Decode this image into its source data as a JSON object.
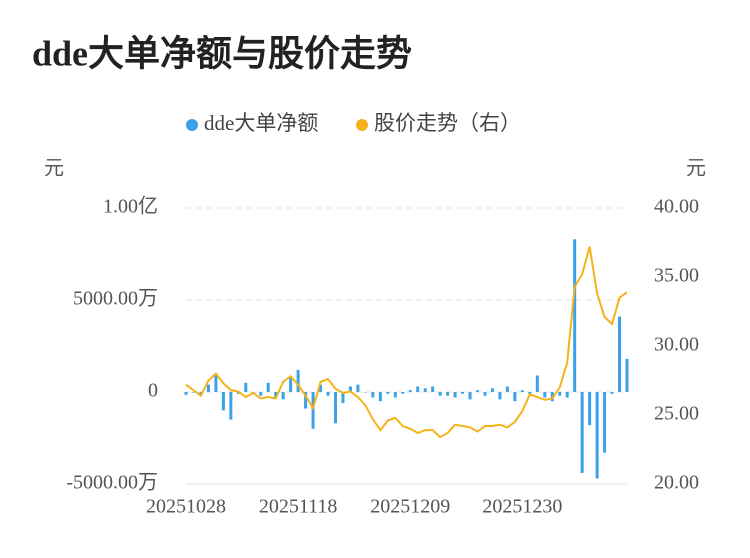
{
  "chart_data": {
    "type": "bar",
    "title": "dde大单净额与股价走势",
    "y_label": "元",
    "y2_label": "元",
    "categories": [
      "20251028",
      null,
      null,
      null,
      null,
      null,
      null,
      null,
      null,
      null,
      null,
      null,
      null,
      null,
      null,
      "20251118",
      null,
      null,
      null,
      null,
      null,
      null,
      null,
      null,
      null,
      null,
      null,
      null,
      null,
      null,
      "20251209",
      null,
      null,
      null,
      null,
      null,
      null,
      null,
      null,
      null,
      null,
      null,
      null,
      null,
      null,
      "20251230",
      null,
      null,
      null,
      null,
      null,
      null,
      null,
      null,
      null,
      null,
      null,
      null,
      null,
      null
    ],
    "series": [
      {
        "name": "dde大单净额",
        "type": "bar",
        "axis": "y",
        "color": "#3ba1e8",
        "values": [
          -1500000,
          0,
          -1000000,
          4000000,
          9000000,
          -10000000,
          -15000000,
          -1000000,
          5000000,
          0,
          -2000000,
          5000000,
          -3000000,
          -4000000,
          8000000,
          12000000,
          -9000000,
          -20000000,
          4000000,
          -2000000,
          -17000000,
          -6000000,
          3000000,
          4000000,
          0,
          -3000000,
          -5000000,
          -1000000,
          -3000000,
          -1000000,
          1000000,
          3000000,
          2000000,
          3000000,
          -2000000,
          -2000000,
          -3000000,
          -1000000,
          -4000000,
          1000000,
          -2000000,
          2000000,
          -4000000,
          3000000,
          -5000000,
          1000000,
          -1000000,
          9000000,
          -3000000,
          -5000000,
          -2000000,
          -3000000,
          83000000,
          -44000000,
          -18000000,
          -47000000,
          -33000000,
          -1000000,
          41000000,
          18000000
        ]
      },
      {
        "name": "股价走势（右）",
        "type": "line",
        "axis": "y2",
        "color": "#f5b31b",
        "values": [
          27.2,
          26.8,
          26.4,
          27.5,
          28.0,
          27.3,
          26.8,
          26.7,
          26.3,
          26.6,
          26.2,
          26.3,
          26.2,
          27.4,
          27.8,
          27.2,
          26.4,
          25.5,
          27.4,
          27.6,
          26.9,
          26.6,
          26.7,
          26.3,
          25.7,
          24.7,
          23.9,
          24.6,
          24.8,
          24.2,
          24.0,
          23.7,
          23.9,
          23.9,
          23.4,
          23.7,
          24.3,
          24.2,
          24.1,
          23.8,
          24.2,
          24.2,
          24.3,
          24.1,
          24.5,
          25.3,
          26.5,
          26.3,
          26.1,
          26.2,
          27.0,
          28.8,
          34.3,
          35.2,
          37.2,
          33.8,
          32.1,
          31.6,
          33.5,
          33.9
        ]
      }
    ],
    "ylim": [
      -50000000,
      100000000
    ],
    "yticks": [
      {
        "value": -50000000,
        "label": "-5000.00万"
      },
      0,
      {
        "value": 50000000,
        "label": "5000.00万"
      },
      {
        "value": 100000000,
        "label": "1.00亿"
      }
    ],
    "y2lim": [
      20,
      40
    ],
    "y2ticks": [
      {
        "value": 20,
        "label": "20.00"
      },
      {
        "value": 25,
        "label": "25.00"
      },
      {
        "value": 30,
        "label": "30.00"
      },
      {
        "value": 35,
        "label": "35.00"
      },
      {
        "value": 40,
        "label": "40.00"
      }
    ],
    "grid": true
  }
}
